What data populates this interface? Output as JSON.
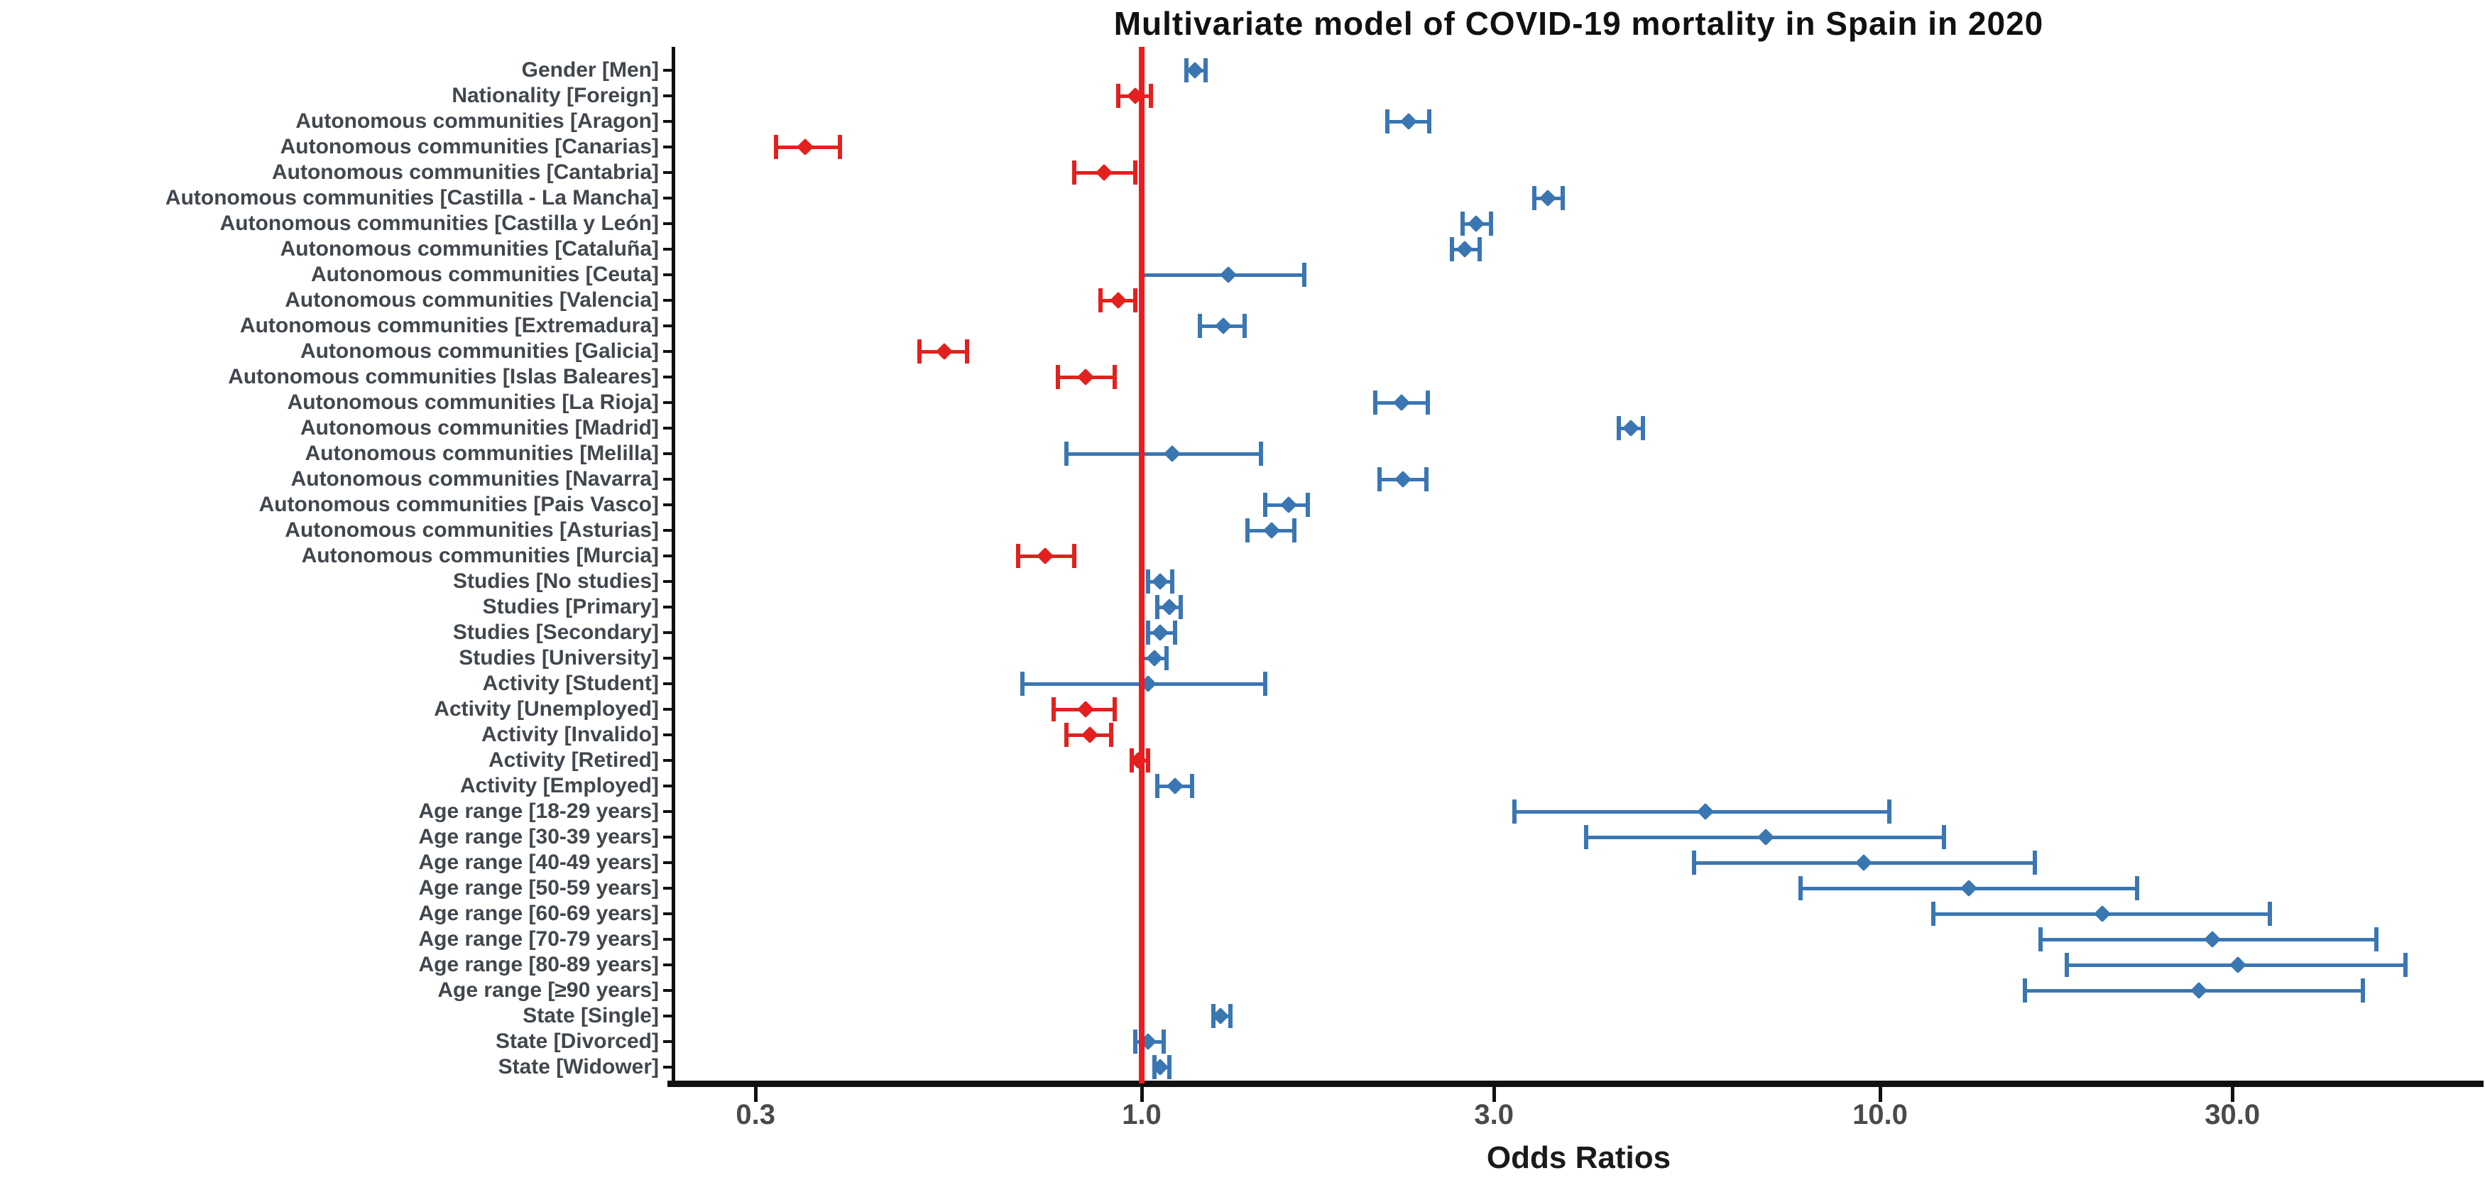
{
  "title": "Multivariate model of COVID-19 mortality in Spain in 2020",
  "chart_data": {
    "type": "scatter",
    "subtype": "forest-plot-odds-ratios-with-95ci-error-bars",
    "title": "Multivariate model of COVID-19 mortality in Spain in 2020",
    "xlabel": "Odds Ratios",
    "ylabel": "",
    "x_scale": "log10",
    "xlim": [
      0.23,
      62
    ],
    "x_ticks": [
      0.3,
      1.0,
      3.0,
      10.0,
      30.0
    ],
    "x_tick_labels": [
      "0.3",
      "1.0",
      "3.0",
      "10.0",
      "30.0"
    ],
    "reference_line_x": 1.0,
    "grid": false,
    "legend_position": "none",
    "marker_shape": "diamond",
    "colors": {
      "or_above_1": "#3a76b2",
      "or_below_1": "#e2211e",
      "reference_line": "#ee1c1f",
      "axis": "#111111",
      "y_label_text": "#41474d",
      "x_tick_text": "#4a4a4a",
      "title_text": "#111111"
    },
    "points": [
      {
        "label": "Gender [Men]",
        "or": 1.18,
        "ci_low": 1.15,
        "ci_high": 1.22,
        "color": "blue"
      },
      {
        "label": "Nationality [Foreign]",
        "or": 0.98,
        "ci_low": 0.93,
        "ci_high": 1.03,
        "color": "red"
      },
      {
        "label": "Autonomous communities [Aragon]",
        "or": 2.3,
        "ci_low": 2.15,
        "ci_high": 2.45,
        "color": "blue"
      },
      {
        "label": "Autonomous communities [Canarias]",
        "or": 0.35,
        "ci_low": 0.32,
        "ci_high": 0.39,
        "color": "red"
      },
      {
        "label": "Autonomous communities [Cantabria]",
        "or": 0.89,
        "ci_low": 0.81,
        "ci_high": 0.98,
        "color": "red"
      },
      {
        "label": "Autonomous communities [Castilla - La Mancha]",
        "or": 3.55,
        "ci_low": 3.4,
        "ci_high": 3.72,
        "color": "blue"
      },
      {
        "label": "Autonomous communities [Castilla y León]",
        "or": 2.84,
        "ci_low": 2.72,
        "ci_high": 2.97,
        "color": "blue"
      },
      {
        "label": "Autonomous communities [Cataluña]",
        "or": 2.74,
        "ci_low": 2.63,
        "ci_high": 2.87,
        "color": "blue"
      },
      {
        "label": "Autonomous communities [Ceuta]",
        "or": 1.31,
        "ci_low": 1.0,
        "ci_high": 1.66,
        "color": "blue"
      },
      {
        "label": "Autonomous communities [Valencia]",
        "or": 0.93,
        "ci_low": 0.88,
        "ci_high": 0.98,
        "color": "red"
      },
      {
        "label": "Autonomous communities [Extremadura]",
        "or": 1.29,
        "ci_low": 1.2,
        "ci_high": 1.38,
        "color": "blue"
      },
      {
        "label": "Autonomous communities [Galicia]",
        "or": 0.54,
        "ci_low": 0.5,
        "ci_high": 0.58,
        "color": "red"
      },
      {
        "label": "Autonomous communities [Islas Baleares]",
        "or": 0.84,
        "ci_low": 0.77,
        "ci_high": 0.92,
        "color": "red"
      },
      {
        "label": "Autonomous communities [La Rioja]",
        "or": 2.25,
        "ci_low": 2.07,
        "ci_high": 2.44,
        "color": "blue"
      },
      {
        "label": "Autonomous communities [Madrid]",
        "or": 4.6,
        "ci_low": 4.43,
        "ci_high": 4.77,
        "color": "blue"
      },
      {
        "label": "Autonomous communities [Melilla]",
        "or": 1.1,
        "ci_low": 0.79,
        "ci_high": 1.45,
        "color": "blue"
      },
      {
        "label": "Autonomous communities [Navarra]",
        "or": 2.26,
        "ci_low": 2.1,
        "ci_high": 2.43,
        "color": "blue"
      },
      {
        "label": "Autonomous communities [Pais Vasco]",
        "or": 1.58,
        "ci_low": 1.47,
        "ci_high": 1.68,
        "color": "blue"
      },
      {
        "label": "Autonomous communities [Asturias]",
        "or": 1.5,
        "ci_low": 1.39,
        "ci_high": 1.61,
        "color": "blue"
      },
      {
        "label": "Autonomous communities [Murcia]",
        "or": 0.74,
        "ci_low": 0.68,
        "ci_high": 0.81,
        "color": "red"
      },
      {
        "label": "Studies [No studies]",
        "or": 1.06,
        "ci_low": 1.02,
        "ci_high": 1.1,
        "color": "blue"
      },
      {
        "label": "Studies [Primary]",
        "or": 1.09,
        "ci_low": 1.05,
        "ci_high": 1.13,
        "color": "blue"
      },
      {
        "label": "Studies [Secondary]",
        "or": 1.06,
        "ci_low": 1.02,
        "ci_high": 1.11,
        "color": "blue"
      },
      {
        "label": "Studies [University]",
        "or": 1.04,
        "ci_low": 1.0,
        "ci_high": 1.08,
        "color": "blue"
      },
      {
        "label": "Activity [Student]",
        "or": 1.02,
        "ci_low": 0.69,
        "ci_high": 1.47,
        "color": "blue"
      },
      {
        "label": "Activity [Unemployed]",
        "or": 0.84,
        "ci_low": 0.76,
        "ci_high": 0.92,
        "color": "red"
      },
      {
        "label": "Activity [Invalido]",
        "or": 0.85,
        "ci_low": 0.79,
        "ci_high": 0.91,
        "color": "red"
      },
      {
        "label": "Activity [Retired]",
        "or": 0.99,
        "ci_low": 0.97,
        "ci_high": 1.02,
        "color": "red"
      },
      {
        "label": "Activity [Employed]",
        "or": 1.11,
        "ci_low": 1.05,
        "ci_high": 1.17,
        "color": "blue"
      },
      {
        "label": "Age range [18-29 years]",
        "or": 5.8,
        "ci_low": 3.2,
        "ci_high": 10.3,
        "color": "blue"
      },
      {
        "label": "Age range [30-39 years]",
        "or": 7.0,
        "ci_low": 4.0,
        "ci_high": 12.2,
        "color": "blue"
      },
      {
        "label": "Age range [40-49 years]",
        "or": 9.5,
        "ci_low": 5.6,
        "ci_high": 16.2,
        "color": "blue"
      },
      {
        "label": "Age range [50-59 years]",
        "or": 13.2,
        "ci_low": 7.8,
        "ci_high": 22.3,
        "color": "blue"
      },
      {
        "label": "Age range [60-69 years]",
        "or": 20.0,
        "ci_low": 11.8,
        "ci_high": 33.7,
        "color": "blue"
      },
      {
        "label": "Age range [70-79 years]",
        "or": 28.2,
        "ci_low": 16.5,
        "ci_high": 47.0,
        "color": "blue"
      },
      {
        "label": "Age range [80-89 years]",
        "or": 30.5,
        "ci_low": 17.9,
        "ci_high": 51.5,
        "color": "blue"
      },
      {
        "label": "Age range [≥90 years]",
        "or": 27.0,
        "ci_low": 15.7,
        "ci_high": 45.1,
        "color": "blue"
      },
      {
        "label": "State [Single]",
        "or": 1.28,
        "ci_low": 1.25,
        "ci_high": 1.32,
        "color": "blue"
      },
      {
        "label": "State [Divorced]",
        "or": 1.02,
        "ci_low": 0.98,
        "ci_high": 1.07,
        "color": "blue"
      },
      {
        "label": "State [Widower]",
        "or": 1.06,
        "ci_low": 1.04,
        "ci_high": 1.09,
        "color": "blue"
      }
    ]
  }
}
